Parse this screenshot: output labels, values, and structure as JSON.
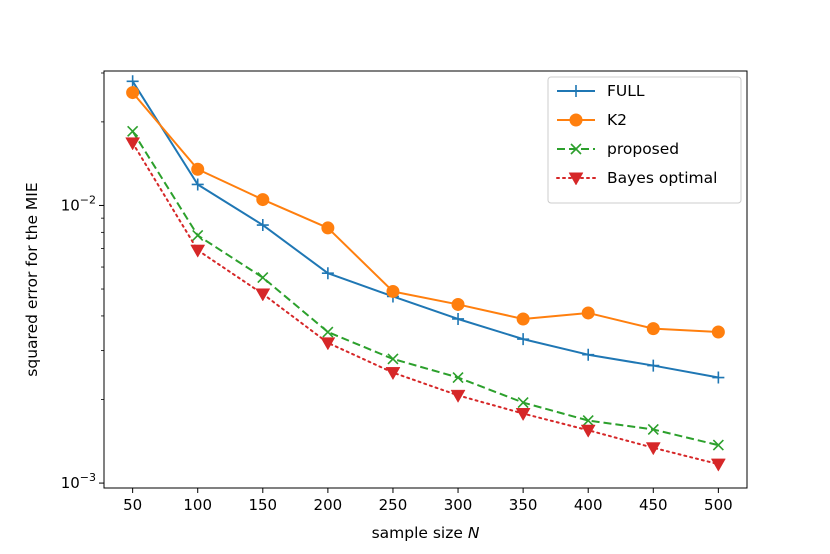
{
  "chart_data": {
    "type": "line",
    "yscale": "log",
    "x": [
      50,
      100,
      150,
      200,
      250,
      300,
      350,
      400,
      450,
      500
    ],
    "xlabel_prefix": "sample size ",
    "xlabel_var": "N",
    "ylabel": "squared error for the MIE",
    "xlim": [
      28,
      522
    ],
    "ylim": [
      0.00096,
      0.0305
    ],
    "xticks": [
      "50",
      "100",
      "150",
      "200",
      "250",
      "300",
      "350",
      "400",
      "450",
      "500"
    ],
    "yticks": [
      {
        "value": 0.01,
        "base": "10",
        "exp": "−2"
      },
      {
        "value": 0.001,
        "base": "10",
        "exp": "−3"
      }
    ],
    "legend_position": "top-right",
    "series": [
      {
        "name": "FULL",
        "color": "#1f77b4",
        "marker": "plus",
        "linestyle": "solid",
        "values": [
          0.028,
          0.0119,
          0.0085,
          0.0057,
          0.0047,
          0.0039,
          0.0033,
          0.0029,
          0.00265,
          0.0024
        ]
      },
      {
        "name": "K2",
        "color": "#ff7f0e",
        "marker": "circle",
        "linestyle": "solid",
        "values": [
          0.0255,
          0.0135,
          0.0105,
          0.0083,
          0.0049,
          0.0044,
          0.0039,
          0.0041,
          0.0036,
          0.0035
        ]
      },
      {
        "name": "proposed",
        "color": "#2ca02c",
        "marker": "x",
        "linestyle": "dashed",
        "values": [
          0.0185,
          0.0078,
          0.0055,
          0.0035,
          0.0028,
          0.0024,
          0.00195,
          0.00168,
          0.00156,
          0.00137
        ]
      },
      {
        "name": "Bayes optimal",
        "color": "#d62728",
        "marker": "triangle-down",
        "linestyle": "dotted",
        "values": [
          0.0168,
          0.0069,
          0.0048,
          0.0032,
          0.0025,
          0.00207,
          0.00178,
          0.00155,
          0.00134,
          0.00117
        ]
      }
    ]
  }
}
